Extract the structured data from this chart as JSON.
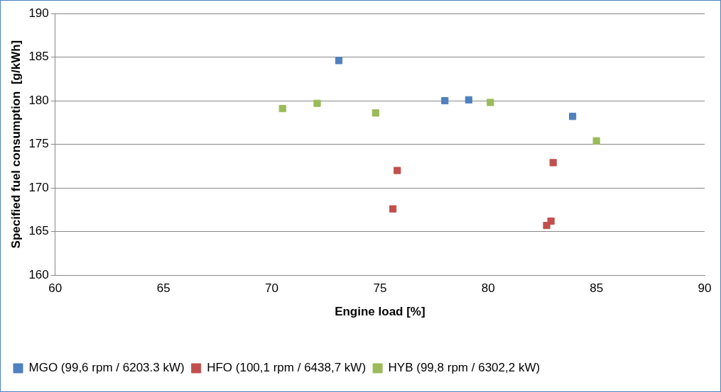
{
  "chart_data": {
    "type": "scatter",
    "xlabel": "Engine load [%]",
    "ylabel": "Specified fuel consumption  [g/kWh]",
    "xlim": [
      60,
      90
    ],
    "xticks": [
      60,
      65,
      70,
      75,
      80,
      85,
      90
    ],
    "ylim": [
      160,
      190
    ],
    "yticks": [
      160,
      165,
      170,
      175,
      180,
      185,
      190
    ],
    "grid": "y",
    "legend": "bottom left",
    "marker": "square",
    "series": [
      {
        "name": "MGO (99,6 rpm / 6203.3 kW)",
        "color": "#4f81bd",
        "x": [
          73.1,
          78.0,
          79.1,
          83.9
        ],
        "values": [
          184.6,
          180.0,
          180.1,
          178.2
        ]
      },
      {
        "name": "HFO (100,1 rpm / 6438,7 kW)",
        "color": "#c0504d",
        "x": [
          75.6,
          75.8,
          82.7,
          82.9,
          83.0
        ],
        "values": [
          167.6,
          172.0,
          165.7,
          166.2,
          172.9
        ]
      },
      {
        "name": "HYB (99,8 rpm / 6302,2 kW)",
        "color": "#9bbb59",
        "x": [
          70.5,
          72.1,
          74.8,
          80.1,
          85.0
        ],
        "values": [
          179.1,
          179.7,
          178.6,
          179.8,
          175.4
        ]
      }
    ]
  }
}
